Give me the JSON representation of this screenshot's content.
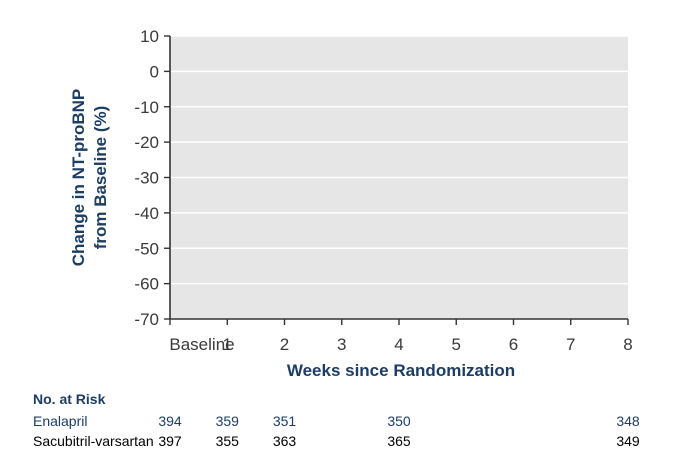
{
  "colors": {
    "plot_background": "#e6e6e6",
    "gridline": "#ffffff",
    "axis": "#333333",
    "axis_title": "#1d3d63",
    "enalapril": "#1d3d63",
    "sacubitril_valsartan": "#000000"
  },
  "chart_data": {
    "type": "line",
    "ylabel_lines": [
      "Change in NT-proBNP",
      "from Baseline (%)"
    ],
    "xlabel": "Weeks since Randomization",
    "ylim": [
      -70,
      10
    ],
    "yticks": [
      10,
      0,
      -10,
      -20,
      -30,
      -40,
      -50,
      -60,
      -70
    ],
    "xlim": [
      0,
      8
    ],
    "xticks": [
      {
        "value": 0,
        "label": "Baseline"
      },
      {
        "value": 1,
        "label": "1"
      },
      {
        "value": 2,
        "label": "2"
      },
      {
        "value": 3,
        "label": "3"
      },
      {
        "value": 4,
        "label": "4"
      },
      {
        "value": 5,
        "label": "5"
      },
      {
        "value": 6,
        "label": "6"
      },
      {
        "value": 7,
        "label": "7"
      },
      {
        "value": 8,
        "label": "8"
      }
    ],
    "grid": true,
    "series": []
  },
  "risk_table": {
    "title": "No. at Risk",
    "rows": [
      {
        "label": "Enalapril",
        "color": "#1d3d63",
        "values": [
          {
            "week": 0,
            "n": "394"
          },
          {
            "week": 1,
            "n": "359"
          },
          {
            "week": 2,
            "n": "351"
          },
          {
            "week": 4,
            "n": "350"
          },
          {
            "week": 8,
            "n": "348"
          }
        ]
      },
      {
        "label": "Sacubitril-varsartan",
        "color": "#000000",
        "values": [
          {
            "week": 0,
            "n": "397"
          },
          {
            "week": 1,
            "n": "355"
          },
          {
            "week": 2,
            "n": "363"
          },
          {
            "week": 4,
            "n": "365"
          },
          {
            "week": 8,
            "n": "349"
          }
        ]
      }
    ]
  }
}
